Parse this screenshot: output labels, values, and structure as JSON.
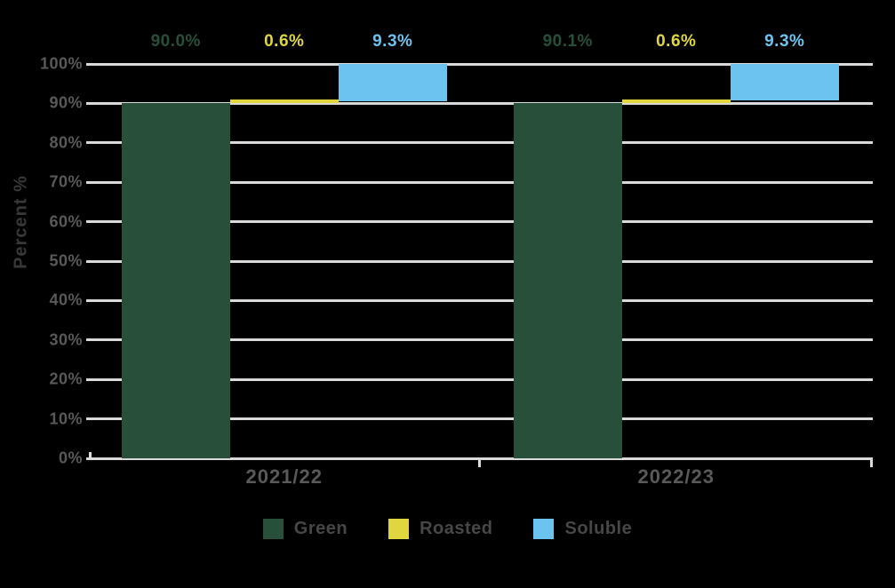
{
  "chart_data": {
    "type": "bar",
    "variant": "stacked-offset-columns",
    "title": "",
    "categories": [
      "2021/22",
      "2022/23"
    ],
    "series": [
      {
        "name": "Green",
        "color": "#274f39",
        "values": [
          90.0,
          90.1
        ],
        "data_labels": [
          "90.0%",
          "90.1%"
        ]
      },
      {
        "name": "Roasted",
        "color": "#e0d63f",
        "values": [
          0.6,
          0.6
        ],
        "data_labels": [
          "0.6%",
          "0.6%"
        ]
      },
      {
        "name": "Soluble",
        "color": "#6cc3ef",
        "values": [
          9.3,
          9.3
        ],
        "data_labels": [
          "9.3%",
          "9.3%"
        ]
      }
    ],
    "xlabel": "",
    "ylabel": "Percent %",
    "ylim": [
      0,
      100
    ],
    "ytick_labels": [
      "0%",
      "10%",
      "20%",
      "30%",
      "40%",
      "50%",
      "60%",
      "70%",
      "80%",
      "90%",
      "100%"
    ],
    "grid": true,
    "legend_position": "bottom"
  },
  "style": {
    "background": "#000000",
    "gridline_color": "#d9d9d9",
    "tick_label_color": "#595959",
    "category_label_color": "#595959",
    "axis_title_color": "#383838",
    "legend_text_color": "#474747"
  }
}
